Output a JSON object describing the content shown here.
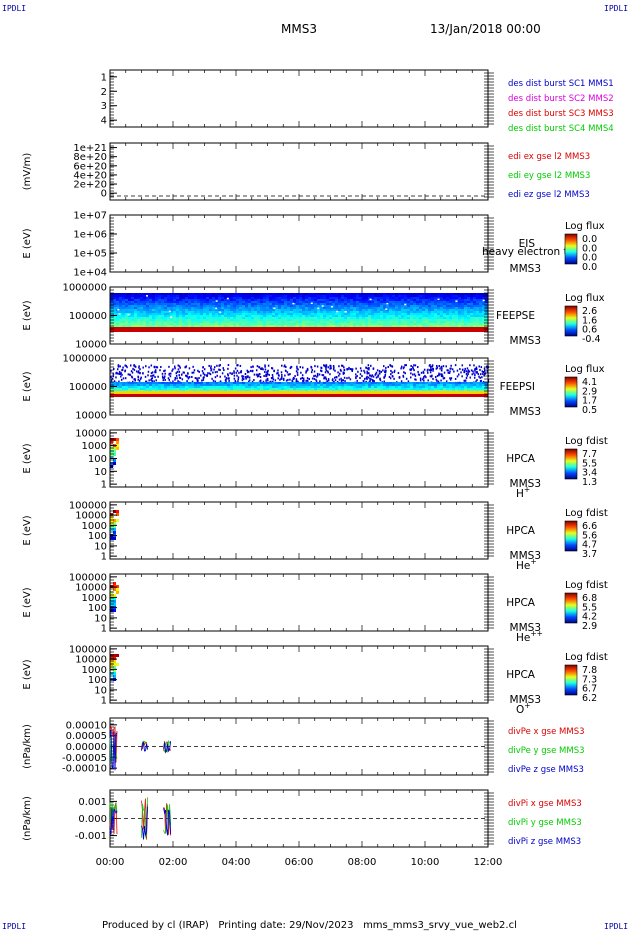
{
  "header": {
    "corner_tag": "IPDLI",
    "spacecraft": "MMS3",
    "date": "13/Jan/2018 00:00"
  },
  "footer": {
    "produced_by": "Produced by cl (IRAP)",
    "printing_date": "Printing date: 29/Nov/2023",
    "script_name": "mms_mms3_srvy_vue_web2.cl"
  },
  "colors": {
    "blue": "#0000cc",
    "magenta": "#dd00dd",
    "red": "#dd0000",
    "green": "#00cc00"
  },
  "chart_data": [
    {
      "type": "line",
      "name": "des-dist-burst",
      "ylim": [
        0.5,
        4.5
      ],
      "yticks": [
        "1",
        "2",
        "3",
        "4"
      ],
      "legend": [
        {
          "label": "des dist burst SC1 MMS1",
          "color": "#0000cc"
        },
        {
          "label": "des dist burst SC2 MMS2",
          "color": "#dd00dd"
        },
        {
          "label": "des dist burst SC3 MMS3",
          "color": "#dd0000"
        },
        {
          "label": "des dist burst SC4 MMS4",
          "color": "#00cc00"
        }
      ]
    },
    {
      "type": "line",
      "name": "edi-efield",
      "ylabel": "(mV/m)",
      "yticks": [
        "1e+21",
        "8e+20",
        "6e+20",
        "4e+20",
        "2e+20",
        "0"
      ],
      "ylim": [
        0,
        1e+21
      ],
      "legend": [
        {
          "label": "edi ex gse l2 MMS3",
          "color": "#dd0000"
        },
        {
          "label": "edi ey gse l2 MMS3",
          "color": "#00cc00"
        },
        {
          "label": "edi ez gse l2 MMS3",
          "color": "#0000cc"
        }
      ]
    },
    {
      "type": "heatmap",
      "name": "eis",
      "ylabel": "E (eV)",
      "yticks": [
        "1e+07",
        "1e+06",
        "1e+05",
        "1e+04"
      ],
      "log_y": true,
      "ylim": [
        10000,
        10000000
      ],
      "instrument": [
        "EIS",
        "MMS3"
      ],
      "overlay_text": "heavy electron to",
      "colorbar_title": "Log flux",
      "colorbar_ticks": [
        "0.0",
        "0.0",
        "0.0",
        "0.0"
      ]
    },
    {
      "type": "heatmap",
      "name": "feepse",
      "ylabel": "E (eV)",
      "yticks": [
        "1000000",
        "100000",
        "10000"
      ],
      "log_y": true,
      "ylim": [
        10000,
        1000000
      ],
      "instrument": [
        "FEEPSE",
        "MMS3"
      ],
      "colorbar_title": "Log flux",
      "colorbar_ticks": [
        "2.6",
        "1.6",
        "0.6",
        "-0.4"
      ],
      "coverage_x": [
        0,
        12
      ]
    },
    {
      "type": "heatmap",
      "name": "feepsi",
      "ylabel": "E (eV)",
      "yticks": [
        "1000000",
        "100000",
        "10000"
      ],
      "log_y": true,
      "ylim": [
        10000,
        1000000
      ],
      "instrument": [
        "FEEPSI",
        "MMS3"
      ],
      "colorbar_title": "Log flux",
      "colorbar_ticks": [
        "4.1",
        "2.9",
        "1.7",
        "0.5"
      ],
      "coverage_x": [
        0,
        12
      ]
    },
    {
      "type": "heatmap",
      "name": "hpca-h",
      "ylabel": "E (eV)",
      "yticks": [
        "10000",
        "1000",
        "100",
        "10",
        "1"
      ],
      "log_y": true,
      "ylim": [
        1,
        40000
      ],
      "instrument": [
        "HPCA",
        "MMS3"
      ],
      "species": "H",
      "species_sup": "+",
      "colorbar_title": "Log fdist",
      "colorbar_ticks": [
        "7.7",
        "5.5",
        "3.4",
        "1.3"
      ],
      "coverage_x": [
        0,
        0.25
      ]
    },
    {
      "type": "heatmap",
      "name": "hpca-he",
      "ylabel": "E (eV)",
      "yticks": [
        "100000",
        "10000",
        "1000",
        "100",
        "10",
        "1"
      ],
      "log_y": true,
      "ylim": [
        1,
        100000
      ],
      "instrument": [
        "HPCA",
        "MMS3"
      ],
      "species": "He",
      "species_sup": "+",
      "colorbar_title": "Log fdist",
      "colorbar_ticks": [
        "6.6",
        "5.6",
        "4.7",
        "3.7"
      ],
      "coverage_x": [
        0,
        0.25
      ]
    },
    {
      "type": "heatmap",
      "name": "hpca-he2",
      "ylabel": "E (eV)",
      "yticks": [
        "100000",
        "10000",
        "1000",
        "100",
        "10",
        "1"
      ],
      "log_y": true,
      "ylim": [
        1,
        100000
      ],
      "instrument": [
        "HPCA",
        "MMS3"
      ],
      "species": "He",
      "species_sup": "++",
      "colorbar_title": "Log fdist",
      "colorbar_ticks": [
        "6.8",
        "5.5",
        "4.2",
        "2.9"
      ],
      "coverage_x": [
        0,
        0.25
      ]
    },
    {
      "type": "heatmap",
      "name": "hpca-o",
      "ylabel": "E (eV)",
      "yticks": [
        "100000",
        "10000",
        "1000",
        "100",
        "10",
        "1"
      ],
      "log_y": true,
      "ylim": [
        1,
        100000
      ],
      "instrument": [
        "HPCA",
        "MMS3"
      ],
      "species": "O",
      "species_sup": "+",
      "colorbar_title": "Log fdist",
      "colorbar_ticks": [
        "7.8",
        "7.3",
        "6.7",
        "6.2"
      ],
      "coverage_x": [
        0,
        0.25
      ]
    },
    {
      "type": "line",
      "name": "divpe",
      "ylabel": "(nPa/km)",
      "yticks": [
        "0.00010",
        "0.00005",
        "0.00000",
        "-0.00005",
        "-0.00010"
      ],
      "ylim": [
        -0.00012,
        0.00012
      ],
      "legend": [
        {
          "label": "divPe x gse MMS3",
          "color": "#dd0000"
        },
        {
          "label": "divPe y gse MMS3",
          "color": "#00cc00"
        },
        {
          "label": "divPe z gse MMS3",
          "color": "#0000cc"
        }
      ],
      "bursts": [
        {
          "x": [
            0.0,
            0.25
          ],
          "amp": 0.0001
        },
        {
          "x": [
            1.0,
            1.2
          ],
          "amp": 2.5e-05
        },
        {
          "x": [
            1.7,
            1.95
          ],
          "amp": 2.5e-05
        }
      ]
    },
    {
      "type": "line",
      "name": "divpi",
      "ylabel": "(nPa/km)",
      "yticks": [
        "0.001",
        "0.000",
        "-0.001"
      ],
      "ylim": [
        -0.0015,
        0.0015
      ],
      "legend": [
        {
          "label": "divPi x gse MMS3",
          "color": "#dd0000"
        },
        {
          "label": "divPi y gse MMS3",
          "color": "#00cc00"
        },
        {
          "label": "divPi z gse MMS3",
          "color": "#0000cc"
        }
      ],
      "bursts": [
        {
          "x": [
            0.0,
            0.25
          ],
          "amp": 0.0009
        },
        {
          "x": [
            1.0,
            1.2
          ],
          "amp": 0.0012
        },
        {
          "x": [
            1.7,
            1.95
          ],
          "amp": 0.0009
        }
      ]
    }
  ],
  "time_axis": {
    "xlim": [
      0,
      12
    ],
    "labels": [
      "00:00",
      "02:00",
      "04:00",
      "06:00",
      "08:00",
      "10:00",
      "12:00"
    ]
  }
}
